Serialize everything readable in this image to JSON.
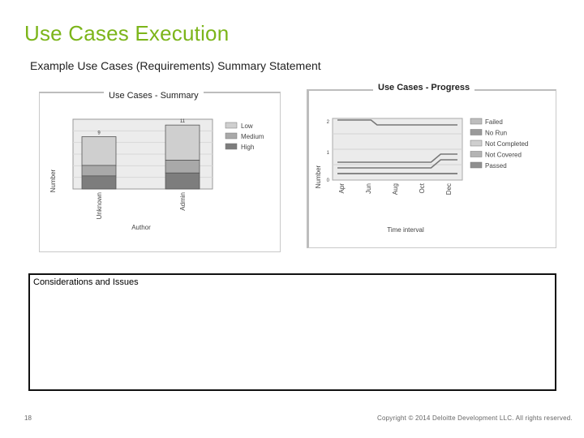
{
  "slide": {
    "title": "Use Cases Execution",
    "subtitle": "Example Use Cases (Requirements) Summary Statement",
    "page_number": "18",
    "copyright": "Copyright © 2014 Deloitte Development LLC. All rights reserved."
  },
  "considerations": {
    "label": "Considerations and Issues"
  },
  "chart_data": [
    {
      "type": "bar",
      "title": "Use Cases - Summary",
      "xlabel": "Author",
      "ylabel": "Number",
      "categories": [
        "Unknown",
        "Admin"
      ],
      "totals": [
        9,
        11
      ],
      "series": [
        {
          "name": "Low",
          "color": "#cfcfcf"
        },
        {
          "name": "Medium",
          "color": "#a9a9a9"
        },
        {
          "name": "High",
          "color": "#7d7d7d"
        }
      ],
      "legend": "right",
      "grid": true
    },
    {
      "type": "line",
      "title": "Use Cases - Progress",
      "xlabel": "Time interval",
      "ylabel": "Number",
      "x": [
        "Apr",
        "Jun",
        "Aug",
        "Oct",
        "Dec"
      ],
      "y_ticks": [
        "0",
        "1",
        "2"
      ],
      "series": [
        {
          "name": "Failed"
        },
        {
          "name": "No Run"
        },
        {
          "name": "Not Completed"
        },
        {
          "name": "Not Covered"
        },
        {
          "name": "Passed"
        }
      ],
      "legend": "right",
      "grid": true
    }
  ]
}
